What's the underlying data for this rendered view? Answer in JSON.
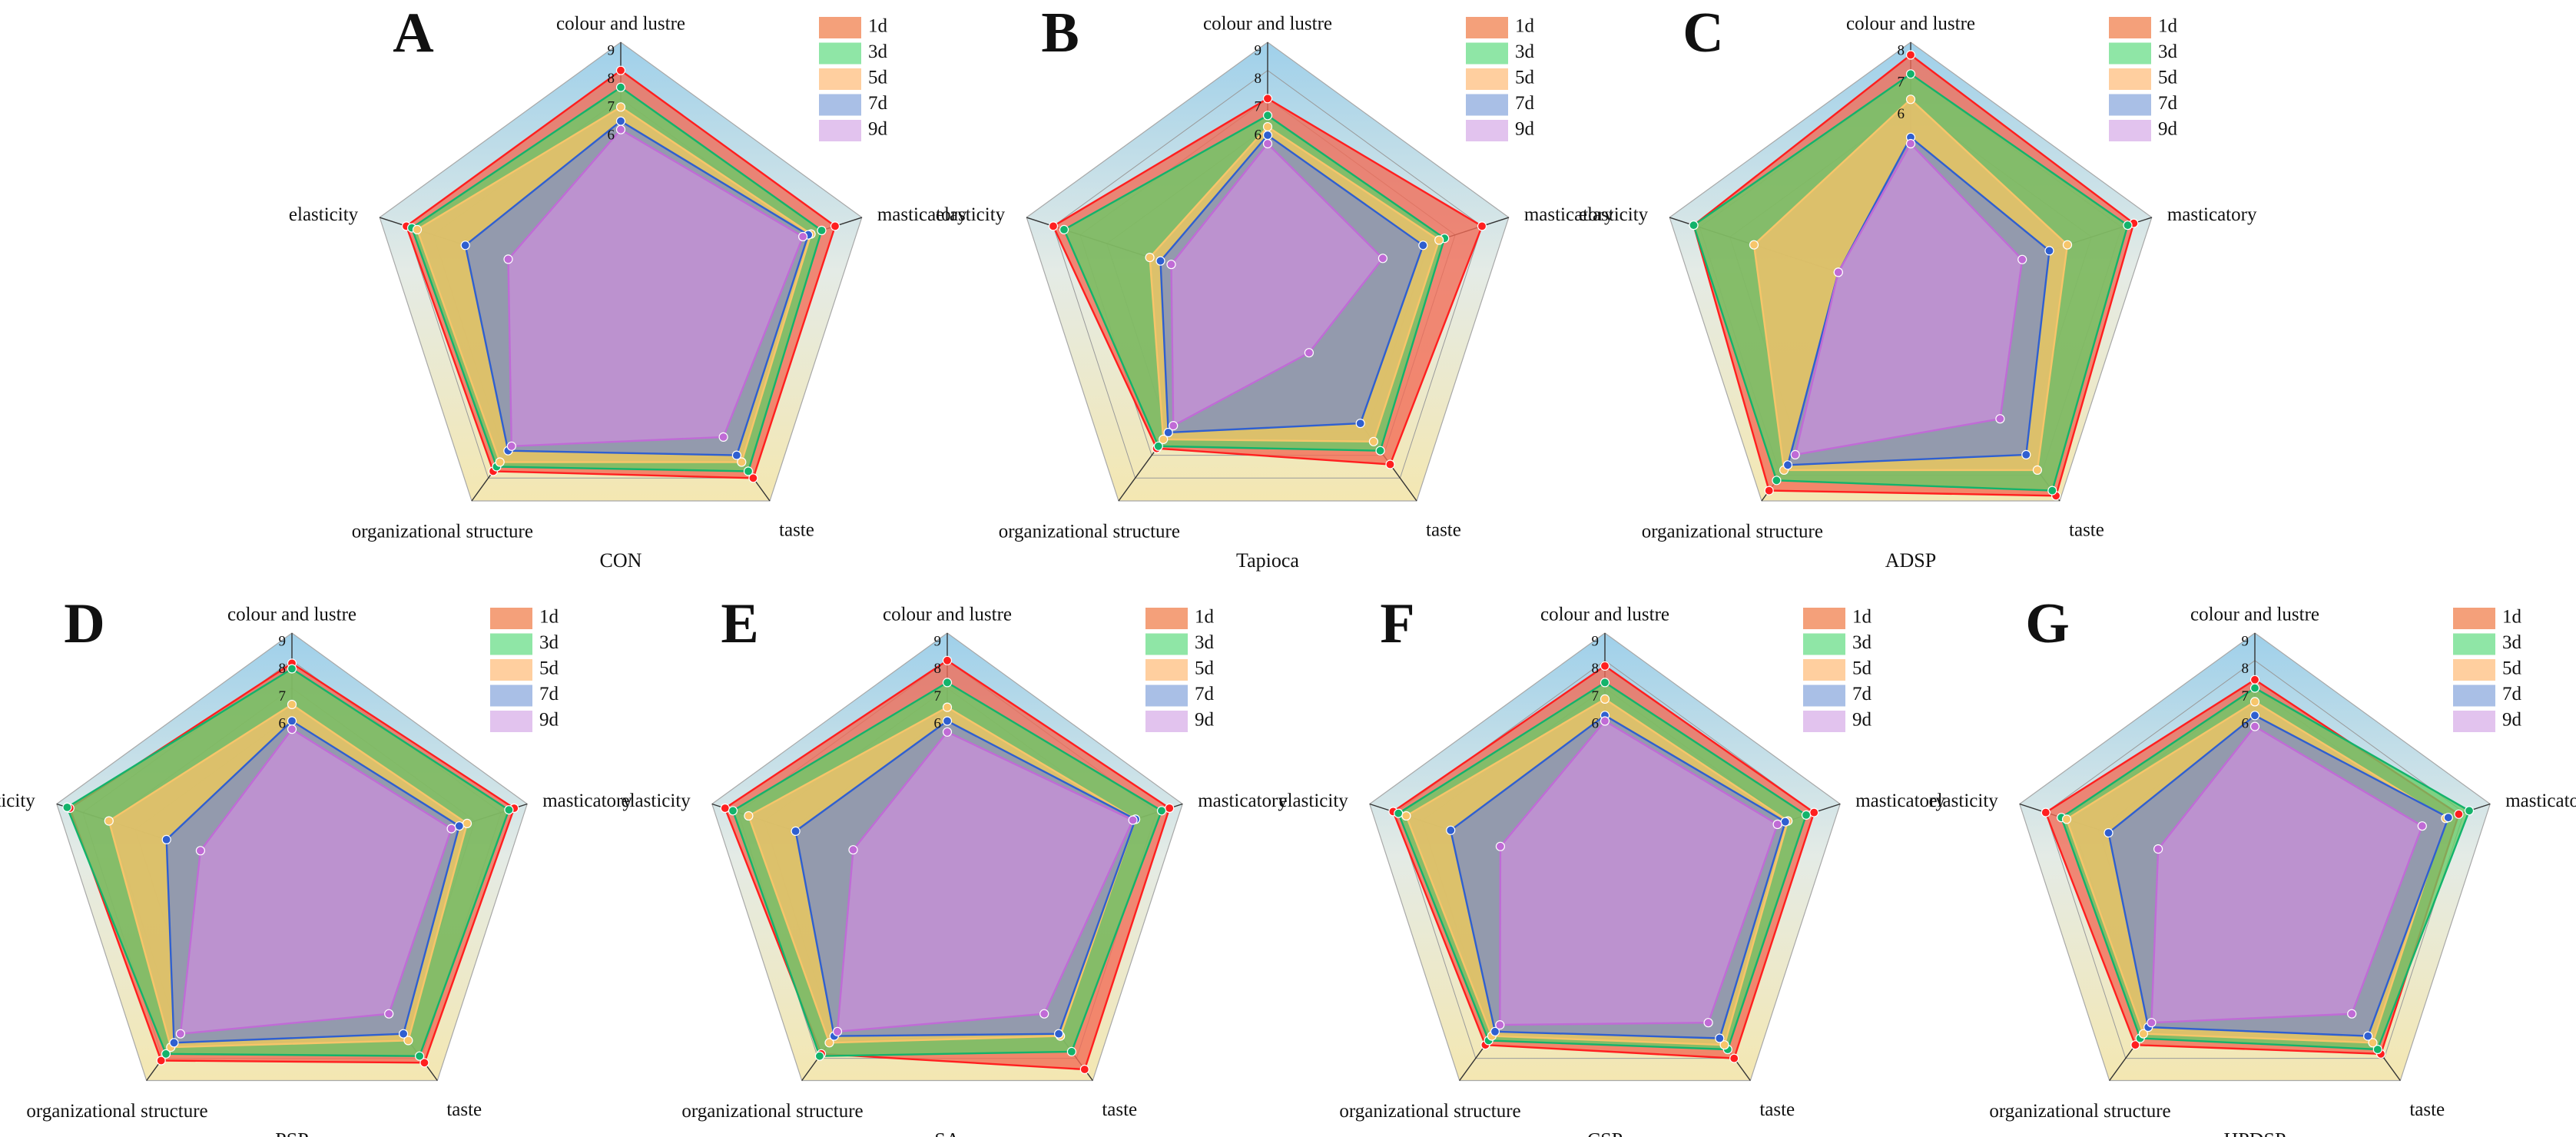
{
  "figure": {
    "axis_names": [
      "colour and lustre",
      "masticatory",
      "taste",
      "organizational structure",
      "elasticity"
    ],
    "legend": [
      "1d",
      "3d",
      "5d",
      "7d",
      "9d"
    ],
    "colors": {
      "fills": [
        "#f4a07a",
        "#8fe6a6",
        "#ffcf9f",
        "#a9bfe6",
        "#e2c3ee"
      ],
      "polys": [
        "#f26a55",
        "#66cc66",
        "#f5c26b",
        "#7f8fc0",
        "#c88fd8"
      ],
      "markers": [
        "#ff1f1f",
        "#13b36b",
        "#f7c56a",
        "#2f5fd0",
        "#c06bd6"
      ],
      "sky": "#9fd0ea",
      "sand": "#f7e6a6"
    }
  },
  "chart_data": [
    {
      "panel": "A",
      "title": "CON",
      "type": "radar",
      "axes": [
        "colour and lustre",
        "masticatory",
        "taste",
        "organizational structure",
        "elasticity"
      ],
      "rmin": 0,
      "rmax": 9,
      "ticks": [
        9,
        8,
        7,
        6
      ],
      "series": [
        {
          "name": "1d",
          "values": [
            8.0,
            8.0,
            8.0,
            7.7,
            8.0
          ]
        },
        {
          "name": "3d",
          "values": [
            7.4,
            7.5,
            7.7,
            7.5,
            7.8
          ]
        },
        {
          "name": "5d",
          "values": [
            6.7,
            7.1,
            7.3,
            7.3,
            7.6
          ]
        },
        {
          "name": "7d",
          "values": [
            6.2,
            7.0,
            7.0,
            6.8,
            5.8
          ]
        },
        {
          "name": "9d",
          "values": [
            5.9,
            6.8,
            6.2,
            6.6,
            4.2
          ]
        }
      ]
    },
    {
      "panel": "B",
      "title": "Tapioca",
      "type": "radar",
      "axes": [
        "colour and lustre",
        "masticatory",
        "taste",
        "organizational structure",
        "elasticity"
      ],
      "rmin": 0,
      "rmax": 9,
      "ticks": [
        9,
        8,
        7,
        6
      ],
      "series": [
        {
          "name": "1d",
          "values": [
            7.0,
            8.0,
            7.4,
            6.7,
            8.0
          ]
        },
        {
          "name": "3d",
          "values": [
            6.4,
            6.6,
            6.8,
            6.6,
            7.6
          ]
        },
        {
          "name": "5d",
          "values": [
            6.0,
            6.4,
            6.4,
            6.3,
            4.4
          ]
        },
        {
          "name": "7d",
          "values": [
            5.7,
            5.8,
            5.6,
            6.0,
            4.0
          ]
        },
        {
          "name": "9d",
          "values": [
            5.4,
            4.3,
            2.5,
            5.7,
            3.6
          ]
        }
      ]
    },
    {
      "panel": "C",
      "title": "ADSP",
      "type": "radar",
      "axes": [
        "colour and lustre",
        "masticatory",
        "taste",
        "organizational structure",
        "elasticity"
      ],
      "rmin": 0,
      "rmax": 8,
      "ticks": [
        8,
        7,
        6
      ],
      "series": [
        {
          "name": "1d",
          "values": [
            7.6,
            7.4,
            7.8,
            7.6,
            7.2
          ]
        },
        {
          "name": "3d",
          "values": [
            7.0,
            7.2,
            7.6,
            7.2,
            7.2
          ]
        },
        {
          "name": "5d",
          "values": [
            6.2,
            5.2,
            6.8,
            6.8,
            5.2
          ]
        },
        {
          "name": "7d",
          "values": [
            5.0,
            4.6,
            6.2,
            6.6,
            2.4
          ]
        },
        {
          "name": "9d",
          "values": [
            4.8,
            3.7,
            4.8,
            6.2,
            2.4
          ]
        }
      ]
    },
    {
      "panel": "D",
      "title": "PSP",
      "type": "radar",
      "axes": [
        "colour and lustre",
        "masticatory",
        "taste",
        "organizational structure",
        "elasticity"
      ],
      "rmin": 0,
      "rmax": 9,
      "ticks": [
        9,
        8,
        7,
        6
      ],
      "series": [
        {
          "name": "1d",
          "values": [
            7.9,
            8.5,
            8.2,
            8.1,
            8.5
          ]
        },
        {
          "name": "3d",
          "values": [
            7.7,
            8.3,
            7.9,
            7.8,
            8.6
          ]
        },
        {
          "name": "5d",
          "values": [
            6.4,
            6.7,
            7.2,
            7.5,
            7.0
          ]
        },
        {
          "name": "7d",
          "values": [
            5.8,
            6.4,
            6.9,
            7.3,
            4.8
          ]
        },
        {
          "name": "9d",
          "values": [
            5.5,
            6.1,
            6.0,
            6.9,
            3.5
          ]
        }
      ]
    },
    {
      "panel": "E",
      "title": "SA",
      "type": "radar",
      "axes": [
        "colour and lustre",
        "masticatory",
        "taste",
        "organizational structure",
        "elasticity"
      ],
      "rmin": 0,
      "rmax": 9,
      "ticks": [
        9,
        8,
        7,
        6
      ],
      "series": [
        {
          "name": "1d",
          "values": [
            8.0,
            8.5,
            8.5,
            7.8,
            8.5
          ]
        },
        {
          "name": "3d",
          "values": [
            7.2,
            8.2,
            7.7,
            7.9,
            8.2
          ]
        },
        {
          "name": "5d",
          "values": [
            6.3,
            7.2,
            7.0,
            7.3,
            7.6
          ]
        },
        {
          "name": "7d",
          "values": [
            5.8,
            7.2,
            6.9,
            7.0,
            5.8
          ]
        },
        {
          "name": "9d",
          "values": [
            5.4,
            7.1,
            6.0,
            6.8,
            3.6
          ]
        }
      ]
    },
    {
      "panel": "F",
      "title": "CSP",
      "type": "radar",
      "axes": [
        "colour and lustre",
        "masticatory",
        "taste",
        "organizational structure",
        "elasticity"
      ],
      "rmin": 0,
      "rmax": 9,
      "ticks": [
        9,
        8,
        7,
        6
      ],
      "series": [
        {
          "name": "1d",
          "values": [
            7.8,
            8.0,
            8.0,
            7.4,
            8.1
          ]
        },
        {
          "name": "3d",
          "values": [
            7.2,
            7.7,
            7.6,
            7.2,
            7.9
          ]
        },
        {
          "name": "5d",
          "values": [
            6.6,
            7.0,
            7.4,
            7.0,
            7.6
          ]
        },
        {
          "name": "7d",
          "values": [
            6.0,
            6.9,
            7.1,
            6.8,
            5.9
          ]
        },
        {
          "name": "9d",
          "values": [
            5.8,
            6.6,
            6.4,
            6.5,
            4.0
          ]
        }
      ]
    },
    {
      "panel": "G",
      "title": "HPDSP",
      "type": "radar",
      "axes": [
        "colour and lustre",
        "masticatory",
        "taste",
        "organizational structure",
        "elasticity"
      ],
      "rmin": 0,
      "rmax": 9,
      "ticks": [
        9,
        8,
        7,
        6
      ],
      "series": [
        {
          "name": "1d",
          "values": [
            7.3,
            7.8,
            7.8,
            7.4,
            8.0
          ]
        },
        {
          "name": "3d",
          "values": [
            7.0,
            8.2,
            7.6,
            7.1,
            7.4
          ]
        },
        {
          "name": "5d",
          "values": [
            6.5,
            7.3,
            7.3,
            6.9,
            7.2
          ]
        },
        {
          "name": "7d",
          "values": [
            6.0,
            7.4,
            7.0,
            6.6,
            5.6
          ]
        },
        {
          "name": "9d",
          "values": [
            5.6,
            6.4,
            6.0,
            6.4,
            3.7
          ]
        }
      ]
    }
  ]
}
